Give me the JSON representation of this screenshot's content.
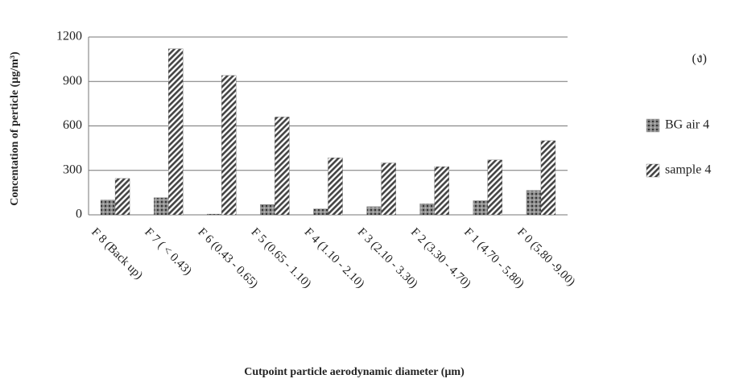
{
  "chart_data": {
    "type": "bar",
    "annotation": "(ง)",
    "x_label": "Cutpoint particle aerodynamic diameter (µm)",
    "y_label": "Concentation of perticle  (µg/m³)",
    "categories": [
      "F 8 (Back up)",
      "F 7 ( < 0.43)",
      "F 6 (0.43 - 0.65)",
      "F 5 (0.65 - 1.10)",
      "F 4 (1.10 - 2.10)",
      "F 3 (2.10 - 3.30)",
      "F 2 (3.30 - 4.70)",
      "F 1 (4.70 - 5.80)",
      "F 0 (5.80 -9.00)"
    ],
    "series": [
      {
        "name": "BG air 4",
        "color": "#555555",
        "values": [
          100,
          115,
          5,
          70,
          40,
          55,
          75,
          95,
          165
        ]
      },
      {
        "name": "sample 4",
        "color": "#444444",
        "values": [
          245,
          1120,
          940,
          660,
          385,
          350,
          325,
          370,
          500
        ]
      }
    ],
    "ylim": [
      0,
      1200
    ],
    "yticks": [
      0,
      300,
      600,
      900,
      1200
    ],
    "grid": true
  }
}
